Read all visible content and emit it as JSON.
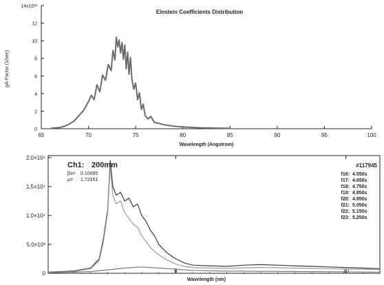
{
  "chart_data": [
    {
      "type": "line",
      "title": "Einstein Coefficients Distribution",
      "xlabel": "Wavelength (Angstrom)",
      "ylabel": "gA-Factor (1/sec)",
      "xlim": [
        65,
        100
      ],
      "ylim": [
        0,
        14000000000000.0
      ],
      "x_ticks": [
        "65",
        "70",
        "75",
        "80",
        "85",
        "90",
        "95",
        "100"
      ],
      "y_ticks": [
        "0",
        "2",
        "4",
        "6",
        "8",
        "10",
        "12",
        "14x10¹²"
      ],
      "grid": false,
      "line_color": "#6b6b6b",
      "series": [
        {
          "x": [
            66,
            67,
            67.5,
            68,
            68.5,
            69,
            69.5,
            70,
            70.3,
            70.6,
            70.9,
            71.2,
            71.5,
            71.8,
            72.1,
            72.4,
            72.6,
            72.8,
            72.95,
            73.1,
            73.25,
            73.4,
            73.55,
            73.7,
            73.85,
            74,
            74.15,
            74.3,
            74.45,
            74.6,
            74.8,
            75,
            75.2,
            75.4,
            75.6,
            75.8,
            76,
            76.3,
            76.6,
            77,
            77.5,
            78,
            79,
            80,
            82,
            85
          ],
          "y": [
            50000000000.0,
            150000000000.0,
            300000000000.0,
            550000000000.0,
            900000000000.0,
            1500000000000.0,
            2100000000000.0,
            3100000000000.0,
            3800000000000.0,
            3300000000000.0,
            5000000000000.0,
            4200000000000.0,
            6100000000000.0,
            5500000000000.0,
            7300000000000.0,
            6600000000000.0,
            8900000000000.0,
            7800000000000.0,
            10400000000000.0,
            9300000000000.0,
            10100000000000.0,
            8600000000000.0,
            9800000000000.0,
            7900000000000.0,
            9500000000000.0,
            6800000000000.0,
            8700000000000.0,
            6200000000000.0,
            8100000000000.0,
            5600000000000.0,
            4500000000000.0,
            5200000000000.0,
            3300000000000.0,
            4100000000000.0,
            2200000000000.0,
            2800000000000.0,
            1500000000000.0,
            1100000000000.0,
            1400000000000.0,
            700000000000.0,
            600000000000.0,
            450000000000.0,
            300000000000.0,
            200000000000.0,
            100000000000.0,
            50000000000.0
          ]
        }
      ]
    },
    {
      "type": "line",
      "title": "",
      "xlabel": "Wavelength (nm)",
      "ylabel": "",
      "xlim": [
        6.5,
        10.4
      ],
      "ylim": [
        0,
        20000
      ],
      "x_ticks": [
        "8",
        "10"
      ],
      "y_ticks": [
        "0",
        "5.0×10³",
        "1.0×10⁴",
        "1.5×10⁴",
        "2.0×10⁴"
      ],
      "grid": false,
      "annotations": {
        "channel": "Ch1:",
        "thickness": "200mm",
        "beta_label": "βs=",
        "beta_value": "0.10495",
        "mu_label": "μ=",
        "mu_value": "1.72151",
        "shot": "#117945"
      },
      "legend": {
        "placement": "top-right",
        "entries": [
          {
            "label": "f16:",
            "value": "4.550s",
            "color": "#2e2e2e"
          },
          {
            "label": "f17:",
            "value": "4.650s",
            "color": "#6a6a6a"
          },
          {
            "label": "f18:",
            "value": "4.750s",
            "color": "#9a9a9a"
          },
          {
            "label": "f19:",
            "value": "4.850s",
            "color": "#2e2e2e"
          },
          {
            "label": "f20:",
            "value": "4.950s",
            "color": "#b0b0b0"
          },
          {
            "label": "f21:",
            "value": "5.050s",
            "color": "#8a8a8a"
          },
          {
            "label": "f22:",
            "value": "5.150s",
            "color": "#4a4a4a"
          },
          {
            "label": "f23:",
            "value": "5.250s",
            "color": "#a0a0a0"
          }
        ]
      },
      "series": [
        {
          "color": "#3a3a3a",
          "x": [
            6.5,
            6.8,
            7.0,
            7.1,
            7.15,
            7.2,
            7.23,
            7.26,
            7.3,
            7.35,
            7.4,
            7.45,
            7.5,
            7.55,
            7.6,
            7.65,
            7.7,
            7.75,
            7.8,
            7.85,
            7.9,
            8.0,
            8.1,
            8.2,
            8.4,
            8.6,
            8.8,
            9.0,
            9.2,
            9.4,
            9.6,
            9.8,
            10.0,
            10.2,
            10.4
          ],
          "y": [
            200,
            400,
            900,
            2500,
            6000,
            11000,
            19500,
            15000,
            13500,
            14000,
            12500,
            13000,
            11500,
            12000,
            10000,
            9000,
            7500,
            6500,
            5000,
            4200,
            3500,
            2500,
            1800,
            1400,
            1300,
            1200,
            1400,
            1500,
            1400,
            1300,
            1200,
            1100,
            1000,
            900,
            800
          ]
        },
        {
          "color": "#9a9a9a",
          "x": [
            6.5,
            6.8,
            7.0,
            7.1,
            7.15,
            7.2,
            7.23,
            7.26,
            7.3,
            7.35,
            7.4,
            7.45,
            7.5,
            7.55,
            7.6,
            7.65,
            7.7,
            7.75,
            7.8,
            7.85,
            7.9,
            8.0,
            8.1,
            8.2,
            8.4,
            8.6,
            8.8,
            9.0,
            9.2,
            9.4,
            9.6,
            9.8,
            10.0,
            10.2,
            10.4
          ],
          "y": [
            150,
            300,
            800,
            2200,
            5500,
            10500,
            18500,
            13500,
            12000,
            12500,
            10500,
            9500,
            8500,
            8000,
            6500,
            5500,
            4500,
            3800,
            3200,
            2700,
            2300,
            1600,
            1200,
            1000,
            900,
            850,
            950,
            1000,
            950,
            900,
            850,
            800,
            750,
            700,
            650
          ]
        },
        {
          "color": "#7a7a7a",
          "x": [
            6.5,
            7.0,
            7.2,
            7.4,
            7.6,
            7.8,
            8.0,
            8.2,
            8.5,
            9.0,
            9.5,
            10.0,
            10.4
          ],
          "y": [
            100,
            300,
            600,
            900,
            1100,
            900,
            700,
            500,
            400,
            350,
            300,
            250,
            200
          ]
        }
      ]
    }
  ]
}
